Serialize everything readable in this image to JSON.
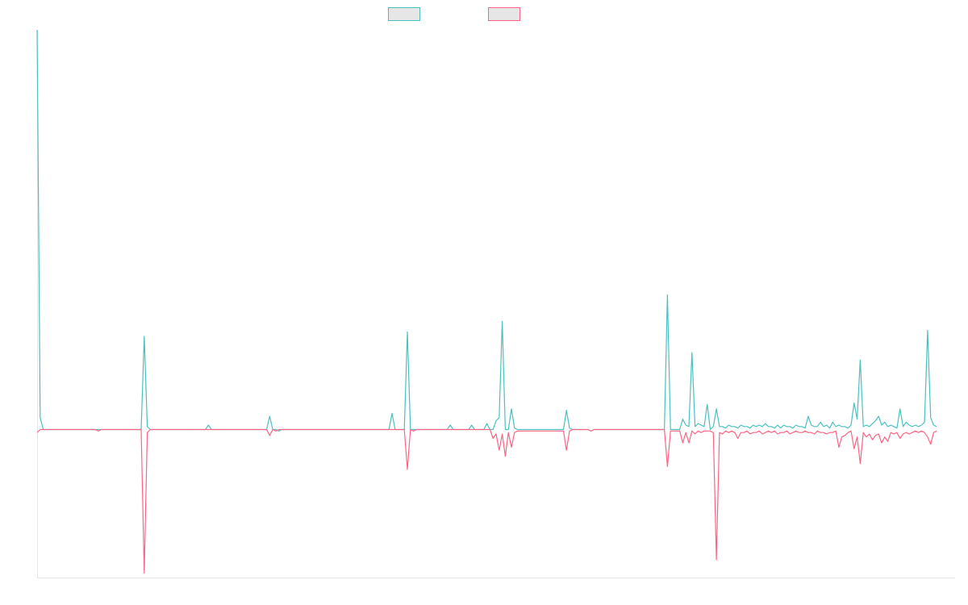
{
  "chart_data": {
    "type": "line",
    "title": "",
    "xlabel": "",
    "ylabel": "",
    "grid": false,
    "legend_position": "top-center",
    "ylim": [
      -100,
      270
    ],
    "xlim": [
      0,
      300
    ],
    "series": [
      {
        "color": "#4bc0c0",
        "legend_fill": "#e6e6e6",
        "points": [
          [
            0,
            270
          ],
          [
            1,
            8
          ],
          [
            2,
            0
          ],
          [
            15,
            0
          ],
          [
            20,
            0
          ],
          [
            34,
            0
          ],
          [
            35,
            63
          ],
          [
            36,
            2
          ],
          [
            37,
            0
          ],
          [
            55,
            0
          ],
          [
            56,
            3
          ],
          [
            57,
            0
          ],
          [
            75,
            0
          ],
          [
            76,
            9
          ],
          [
            77,
            0
          ],
          [
            78,
            0
          ],
          [
            79,
            -1
          ],
          [
            80,
            0
          ],
          [
            115,
            0
          ],
          [
            116,
            11
          ],
          [
            117,
            0
          ],
          [
            120,
            0
          ],
          [
            121,
            66
          ],
          [
            122,
            0
          ],
          [
            134,
            0
          ],
          [
            135,
            3
          ],
          [
            136,
            0
          ],
          [
            141,
            0
          ],
          [
            142,
            3
          ],
          [
            143,
            0
          ],
          [
            146,
            0
          ],
          [
            147,
            4
          ],
          [
            148,
            0
          ],
          [
            149,
            0
          ],
          [
            150,
            6
          ],
          [
            151,
            8
          ],
          [
            152,
            73
          ],
          [
            153,
            0
          ],
          [
            154,
            0
          ],
          [
            155,
            14
          ],
          [
            156,
            1
          ],
          [
            157,
            0
          ],
          [
            172,
            0
          ],
          [
            173,
            13
          ],
          [
            174,
            1
          ],
          [
            175,
            0
          ],
          [
            180,
            0
          ],
          [
            181,
            -1
          ],
          [
            182,
            0
          ],
          [
            193,
            0
          ],
          [
            193.5,
            0
          ],
          [
            194,
            0
          ],
          [
            205,
            0
          ],
          [
            206,
            91
          ],
          [
            207,
            0
          ],
          [
            210,
            0
          ],
          [
            211,
            7
          ],
          [
            212,
            3
          ],
          [
            213,
            2
          ],
          [
            214,
            52
          ],
          [
            215,
            2
          ],
          [
            216,
            4
          ],
          [
            217,
            3
          ],
          [
            218,
            2
          ],
          [
            219,
            17
          ],
          [
            220,
            0
          ],
          [
            221,
            2
          ],
          [
            222,
            14
          ],
          [
            223,
            2
          ],
          [
            224,
            2
          ],
          [
            225,
            1
          ],
          [
            226,
            3
          ],
          [
            227,
            2
          ],
          [
            228,
            2
          ],
          [
            229,
            1
          ],
          [
            230,
            3
          ],
          [
            231,
            2
          ],
          [
            232,
            2
          ],
          [
            233,
            1
          ],
          [
            234,
            3
          ],
          [
            235,
            2
          ],
          [
            236,
            3
          ],
          [
            237,
            2
          ],
          [
            238,
            4
          ],
          [
            239,
            2
          ],
          [
            240,
            2
          ],
          [
            241,
            1
          ],
          [
            242,
            3
          ],
          [
            243,
            1
          ],
          [
            244,
            3
          ],
          [
            245,
            2
          ],
          [
            246,
            2
          ],
          [
            247,
            1
          ],
          [
            248,
            3
          ],
          [
            249,
            2
          ],
          [
            250,
            2
          ],
          [
            251,
            1
          ],
          [
            252,
            9
          ],
          [
            253,
            3
          ],
          [
            254,
            2
          ],
          [
            255,
            2
          ],
          [
            256,
            5
          ],
          [
            257,
            2
          ],
          [
            258,
            3
          ],
          [
            259,
            1
          ],
          [
            260,
            5
          ],
          [
            261,
            2
          ],
          [
            262,
            3
          ],
          [
            263,
            2
          ],
          [
            264,
            2
          ],
          [
            265,
            1
          ],
          [
            266,
            3
          ],
          [
            267,
            18
          ],
          [
            268,
            7
          ],
          [
            269,
            47
          ],
          [
            270,
            2
          ],
          [
            271,
            3
          ],
          [
            272,
            2
          ],
          [
            273,
            4
          ],
          [
            274,
            6
          ],
          [
            275,
            9
          ],
          [
            276,
            3
          ],
          [
            277,
            5
          ],
          [
            278,
            2
          ],
          [
            279,
            3
          ],
          [
            280,
            2
          ],
          [
            281,
            1
          ],
          [
            282,
            14
          ],
          [
            283,
            2
          ],
          [
            284,
            5
          ],
          [
            285,
            3
          ],
          [
            286,
            2
          ],
          [
            287,
            3
          ],
          [
            288,
            2
          ],
          [
            289,
            3
          ],
          [
            290,
            5
          ],
          [
            291,
            67
          ],
          [
            292,
            8
          ],
          [
            293,
            3
          ],
          [
            294,
            2
          ]
        ]
      },
      {
        "color": "#ff6384",
        "legend_fill": "#e6e6e6",
        "points": [
          [
            0,
            -2
          ],
          [
            1,
            0
          ],
          [
            2,
            0
          ],
          [
            15,
            0
          ],
          [
            19,
            0
          ],
          [
            20,
            -1
          ],
          [
            21,
            0
          ],
          [
            34,
            0
          ],
          [
            35,
            -97
          ],
          [
            36,
            -2
          ],
          [
            37,
            0
          ],
          [
            75,
            0
          ],
          [
            76,
            -4
          ],
          [
            77,
            0
          ],
          [
            78,
            -1
          ],
          [
            79,
            0
          ],
          [
            80,
            0
          ],
          [
            115,
            0
          ],
          [
            120,
            0
          ],
          [
            121,
            -27
          ],
          [
            122,
            0
          ],
          [
            123,
            -1
          ],
          [
            124,
            0
          ],
          [
            148,
            0
          ],
          [
            149,
            -6
          ],
          [
            150,
            -3
          ],
          [
            151,
            -14
          ],
          [
            152,
            -3
          ],
          [
            153,
            -18
          ],
          [
            154,
            -2
          ],
          [
            155,
            -12
          ],
          [
            156,
            -2
          ],
          [
            157,
            -1
          ],
          [
            158,
            -1
          ],
          [
            159,
            -1
          ],
          [
            172,
            -1
          ],
          [
            173,
            -14
          ],
          [
            174,
            -1
          ],
          [
            175,
            0
          ],
          [
            180,
            0
          ],
          [
            181,
            -1
          ],
          [
            182,
            0
          ],
          [
            205,
            0
          ],
          [
            206,
            -25
          ],
          [
            207,
            -1
          ],
          [
            210,
            -1
          ],
          [
            211,
            -9
          ],
          [
            212,
            -2
          ],
          [
            213,
            -9
          ],
          [
            214,
            -1
          ],
          [
            215,
            -3
          ],
          [
            216,
            -1
          ],
          [
            217,
            -2
          ],
          [
            218,
            -1
          ],
          [
            219,
            -1
          ],
          [
            220,
            -1
          ],
          [
            221,
            -2
          ],
          [
            222,
            -88
          ],
          [
            223,
            -2
          ],
          [
            224,
            -3
          ],
          [
            225,
            -1
          ],
          [
            226,
            -2
          ],
          [
            227,
            -1
          ],
          [
            228,
            -2
          ],
          [
            229,
            -6
          ],
          [
            230,
            -2
          ],
          [
            231,
            -2
          ],
          [
            232,
            -1
          ],
          [
            233,
            -3
          ],
          [
            234,
            -2
          ],
          [
            235,
            -2
          ],
          [
            236,
            -1
          ],
          [
            237,
            -3
          ],
          [
            238,
            -2
          ],
          [
            239,
            -1
          ],
          [
            240,
            -2
          ],
          [
            241,
            -1
          ],
          [
            242,
            -3
          ],
          [
            243,
            -2
          ],
          [
            244,
            -2
          ],
          [
            245,
            -1
          ],
          [
            246,
            -3
          ],
          [
            247,
            -2
          ],
          [
            248,
            -1
          ],
          [
            249,
            -2
          ],
          [
            250,
            -2
          ],
          [
            251,
            -1
          ],
          [
            252,
            -2
          ],
          [
            253,
            -2
          ],
          [
            254,
            -3
          ],
          [
            255,
            -1
          ],
          [
            256,
            -2
          ],
          [
            257,
            -2
          ],
          [
            258,
            -3
          ],
          [
            259,
            -2
          ],
          [
            260,
            -2
          ],
          [
            261,
            -1
          ],
          [
            262,
            -12
          ],
          [
            263,
            -5
          ],
          [
            264,
            -4
          ],
          [
            265,
            -2
          ],
          [
            266,
            -1
          ],
          [
            267,
            -13
          ],
          [
            268,
            -5
          ],
          [
            269,
            -23
          ],
          [
            270,
            -2
          ],
          [
            271,
            -5
          ],
          [
            272,
            -3
          ],
          [
            273,
            -7
          ],
          [
            274,
            -4
          ],
          [
            275,
            -3
          ],
          [
            276,
            -9
          ],
          [
            277,
            -5
          ],
          [
            278,
            -8
          ],
          [
            279,
            -2
          ],
          [
            280,
            -3
          ],
          [
            281,
            -2
          ],
          [
            282,
            -6
          ],
          [
            283,
            -3
          ],
          [
            284,
            -2
          ],
          [
            285,
            -3
          ],
          [
            286,
            -2
          ],
          [
            287,
            -1
          ],
          [
            288,
            -2
          ],
          [
            289,
            -1
          ],
          [
            290,
            -2
          ],
          [
            291,
            -5
          ],
          [
            292,
            -10
          ],
          [
            293,
            -2
          ],
          [
            294,
            -1
          ]
        ]
      }
    ]
  }
}
